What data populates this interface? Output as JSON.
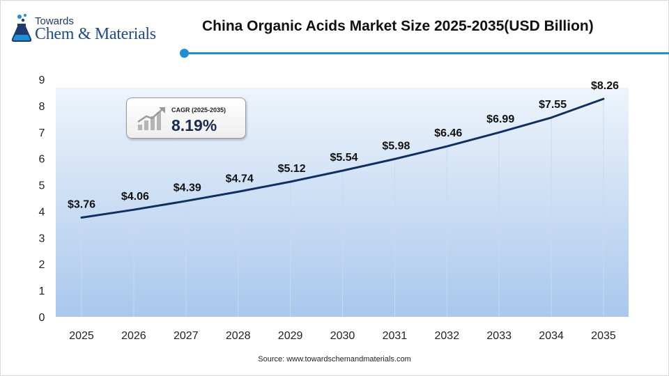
{
  "header": {
    "logo_towards": "Towards",
    "logo_main": "Chem & Materials",
    "title": "China Organic Acids Market Size 2025-2035(USD Billion)"
  },
  "cagr": {
    "label": "CAGR (2025-2035)",
    "value": "8.19%"
  },
  "source": "Source: www.towardschemandmaterials.com",
  "colors": {
    "accent": "#1e8fd6",
    "line": "#0f2f63",
    "area_top": "#eef4fc",
    "area_bottom": "#a9c8ec"
  },
  "chart_data": {
    "type": "line",
    "title": "China Organic Acids Market Size 2025-2035(USD Billion)",
    "xlabel": "",
    "ylabel": "",
    "categories": [
      "2025",
      "2026",
      "2027",
      "2028",
      "2029",
      "2030",
      "2031",
      "2032",
      "2033",
      "2034",
      "2035"
    ],
    "values": [
      3.76,
      4.06,
      4.39,
      4.74,
      5.12,
      5.54,
      5.98,
      6.46,
      6.99,
      7.55,
      8.26
    ],
    "data_labels": [
      "$3.76",
      "$4.06",
      "$4.39",
      "$4.74",
      "$5.12",
      "$5.54",
      "$5.98",
      "$6.46",
      "$6.99",
      "$7.55",
      "$8.26"
    ],
    "ylim": [
      0,
      9
    ],
    "yticks": [
      "0",
      "1",
      "2",
      "3",
      "4",
      "5",
      "6",
      "7",
      "8",
      "9"
    ],
    "grid": "vertical",
    "legend": "none"
  }
}
